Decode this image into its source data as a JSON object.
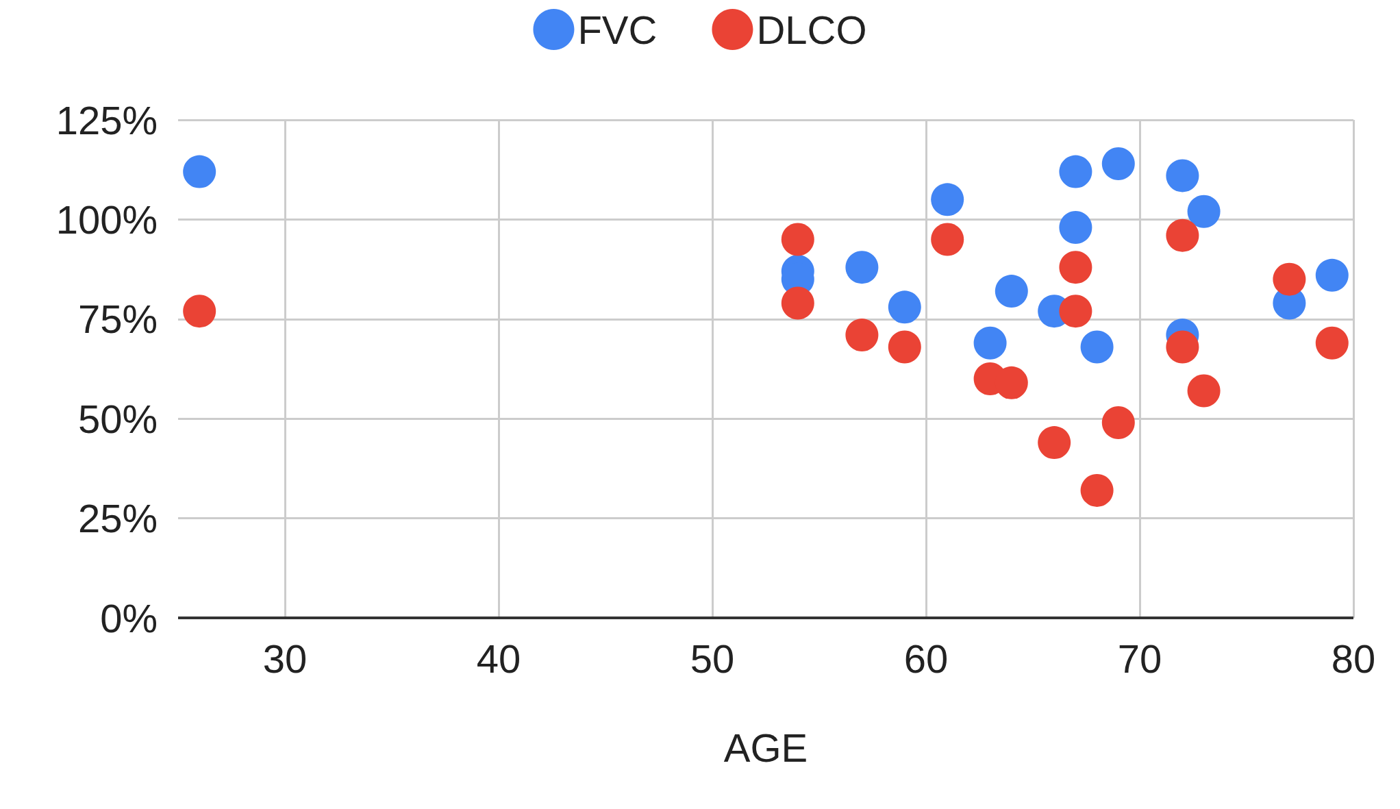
{
  "chart_data": {
    "type": "scatter",
    "xlabel": "AGE",
    "xlim": [
      25,
      80
    ],
    "xticks": [
      30,
      40,
      50,
      60,
      70,
      80
    ],
    "ylim": [
      0,
      125
    ],
    "yticks": [
      {
        "value": 0,
        "label": "0%"
      },
      {
        "value": 25,
        "label": "25%"
      },
      {
        "value": 50,
        "label": "50%"
      },
      {
        "value": 75,
        "label": "75%"
      },
      {
        "value": 100,
        "label": "100%"
      },
      {
        "value": 125,
        "label": "125%"
      }
    ],
    "grid": true,
    "legend": "top",
    "marker": "circle",
    "series": [
      {
        "name": "FVC",
        "color": "#4285f4",
        "x": [
          26,
          54,
          54,
          57,
          59,
          61,
          63,
          64,
          66,
          67,
          67,
          68,
          69,
          72,
          72,
          73,
          77,
          79
        ],
        "values": [
          112,
          87,
          85,
          88,
          78,
          105,
          69,
          82,
          77,
          112,
          98,
          68,
          114,
          111,
          71,
          102,
          79,
          86
        ]
      },
      {
        "name": "DLCO",
        "color": "#ea4335",
        "x": [
          26,
          54,
          54,
          57,
          59,
          61,
          63,
          64,
          66,
          67,
          67,
          68,
          69,
          72,
          72,
          73,
          77,
          79
        ],
        "values": [
          77,
          95,
          79,
          71,
          68,
          95,
          60,
          59,
          44,
          88,
          77,
          32,
          49,
          96,
          68,
          57,
          85,
          69
        ]
      }
    ]
  }
}
